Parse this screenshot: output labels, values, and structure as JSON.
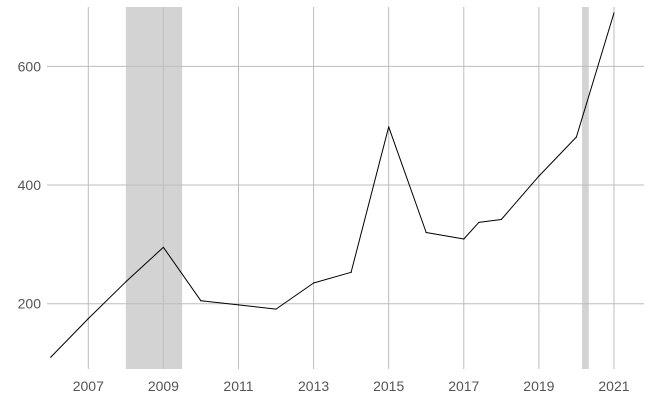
{
  "chart_data": {
    "type": "line",
    "title": "",
    "xlabel": "",
    "ylabel": "",
    "x_ticks": [
      "2007",
      "2009",
      "2011",
      "2013",
      "2015",
      "2017",
      "2019",
      "2021"
    ],
    "y_ticks": [
      "200",
      "400",
      "600"
    ],
    "xlim": [
      2005.9,
      2021.8
    ],
    "ylim": [
      90,
      700
    ],
    "grid": true,
    "legend": "none",
    "shaded_periods": [
      {
        "start": 2008.0,
        "end": 2009.5
      },
      {
        "start": 2020.15,
        "end": 2020.33
      }
    ],
    "series": [
      {
        "x": [
          2006.0,
          2007.0,
          2008.0,
          2009.0,
          2010.0,
          2011.0,
          2012.0,
          2013.0,
          2014.0,
          2015.0,
          2016.0,
          2017.0,
          2017.4,
          2018.0,
          2019.0,
          2020.0,
          2021.0
        ],
        "values": [
          110,
          175,
          237,
          295,
          205,
          198,
          191,
          235,
          253,
          498,
          320,
          309,
          337,
          342,
          415,
          481,
          690
        ]
      }
    ]
  },
  "colors": {
    "background": "#ffffff",
    "grid": "#bdbdbd",
    "shade": "#d3d3d3",
    "line": "#000000",
    "tick_text": "#555555"
  }
}
